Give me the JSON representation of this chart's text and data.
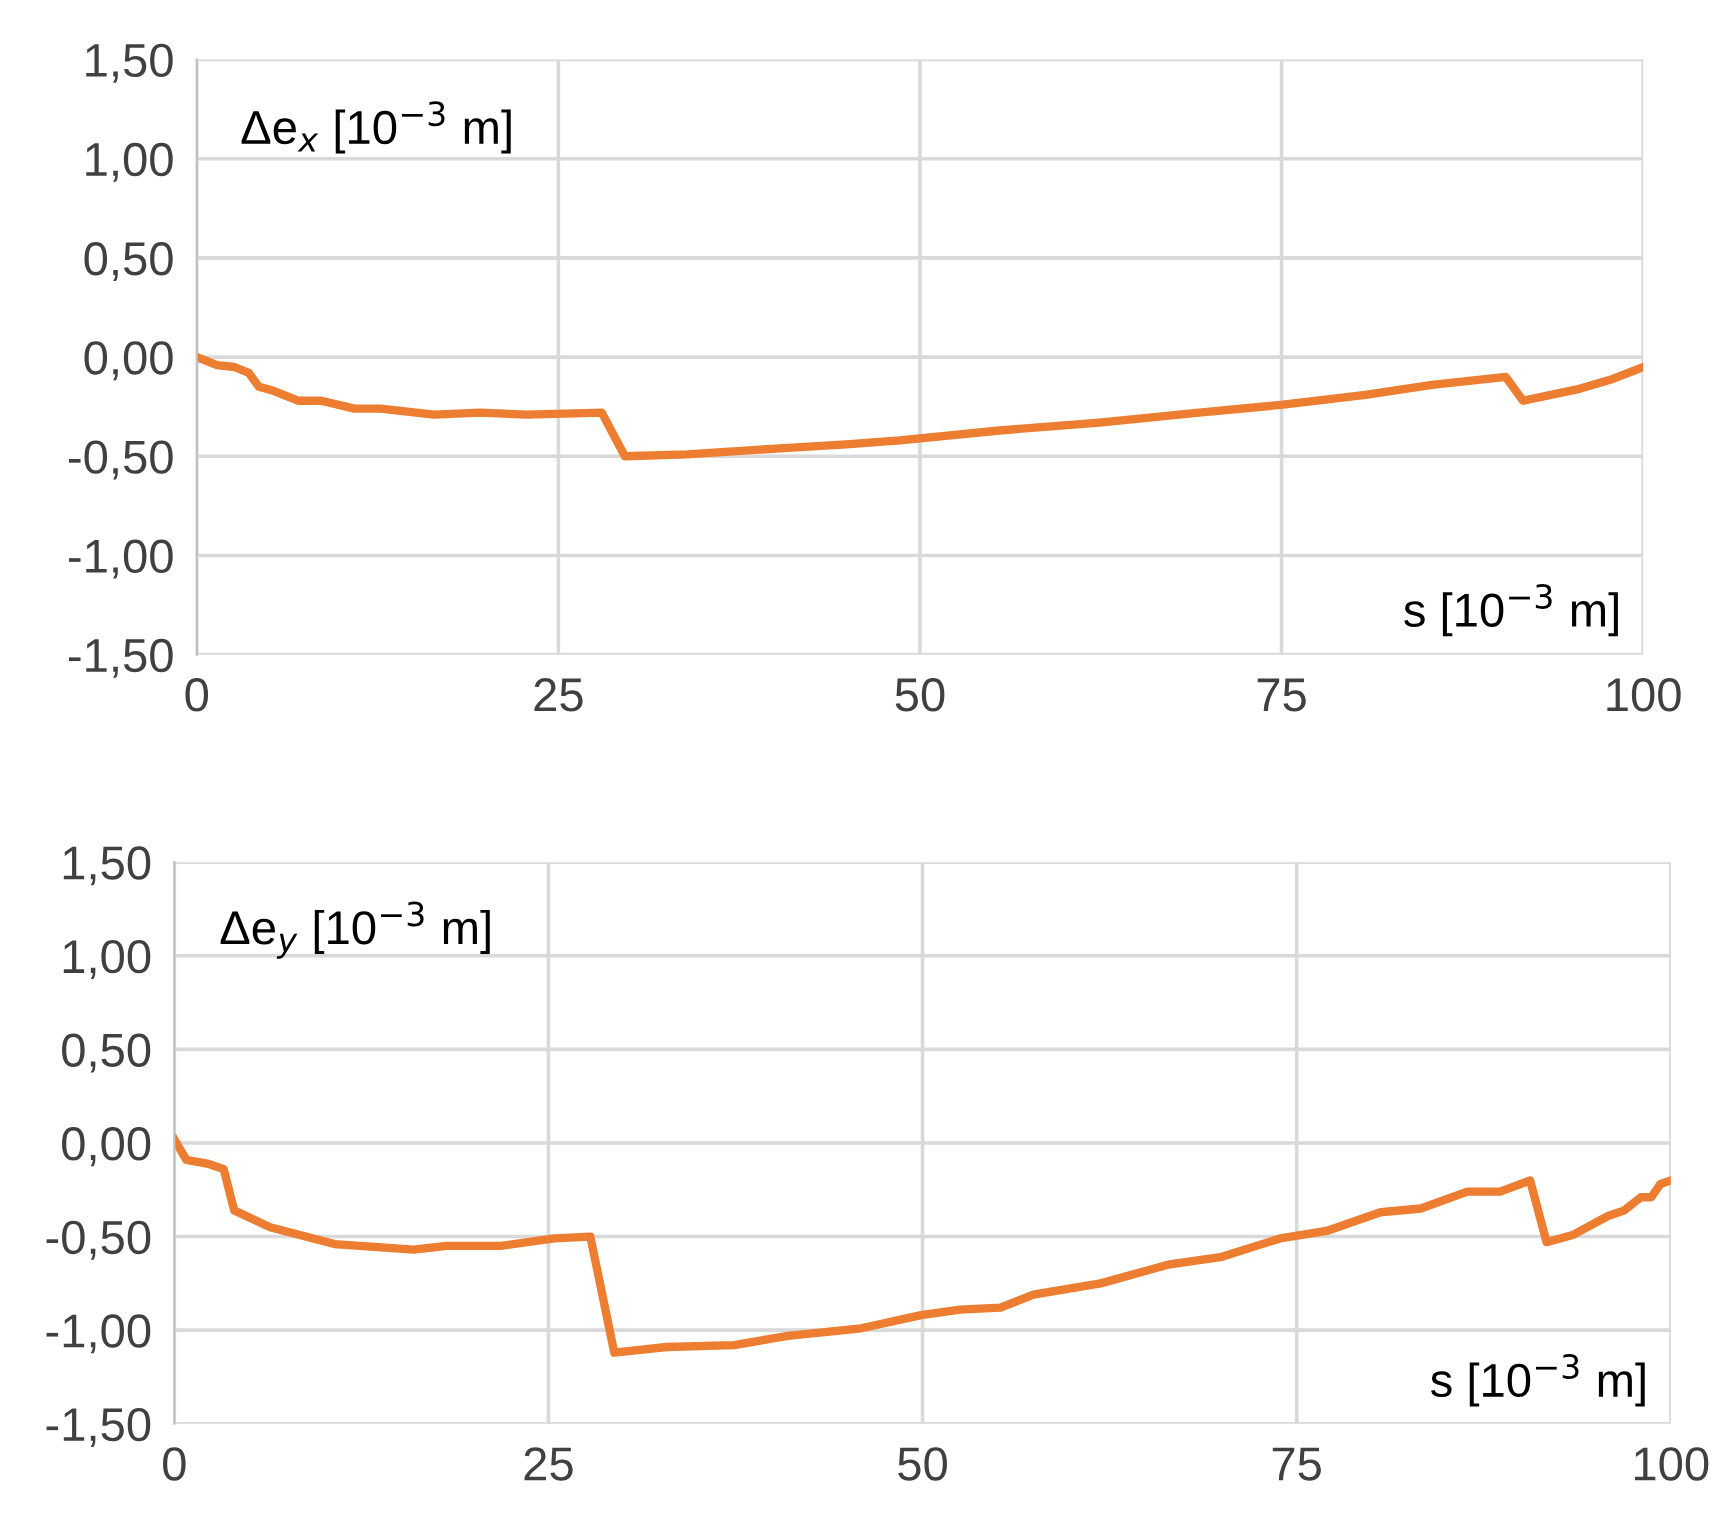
{
  "chart_data": [
    {
      "type": "line",
      "ylabel": "Δe$_{x}$ [10$^{−3}$ m]",
      "xlabel": "s [10$^{−3}$ m]",
      "series": [
        {
          "color": "#ed7d31",
          "x": [
            0,
            1.4,
            2.6,
            3.6,
            4.3,
            5.3,
            7,
            8.6,
            10.9,
            12.7,
            16.4,
            19.6,
            22.8,
            28,
            29.6,
            33.9,
            40.3,
            44.9,
            48.6,
            55.5,
            62.4,
            69.3,
            75.1,
            80.8,
            85.4,
            90.5,
            91.7,
            95.6,
            97.9,
            100
          ],
          "values": [
            0,
            -0.04,
            -0.05,
            -0.08,
            -0.15,
            -0.17,
            -0.22,
            -0.22,
            -0.26,
            -0.26,
            -0.29,
            -0.28,
            -0.29,
            -0.28,
            -0.5,
            -0.49,
            -0.46,
            -0.44,
            -0.42,
            -0.37,
            -0.33,
            -0.28,
            -0.24,
            -0.19,
            -0.14,
            -0.1,
            -0.22,
            -0.16,
            -0.11,
            -0.05
          ]
        }
      ],
      "xlim": [
        0,
        100
      ],
      "xticks": [
        0,
        25,
        50,
        75,
        100
      ],
      "ylim": [
        -1.5,
        1.5
      ],
      "yticks": [
        {
          "value": -1.5,
          "label": "-1,50"
        },
        {
          "value": -1.0,
          "label": "-1,00"
        },
        {
          "value": -0.5,
          "label": "-0,50"
        },
        {
          "value": 0,
          "label": "0,00"
        },
        {
          "value": 0.5,
          "label": "0,50"
        },
        {
          "value": 1.0,
          "label": "1,00"
        },
        {
          "value": 1.5,
          "label": "1,50"
        }
      ],
      "grid": true,
      "line_style": "solid",
      "marker": "none"
    },
    {
      "type": "line",
      "ylabel": "Δe$_{y}$ [10$^{−3}$ m]",
      "xlabel": "s [10$^{−3}$ m]",
      "series": [
        {
          "color": "#ed7d31",
          "x": [
            0,
            0.8,
            2.2,
            3.3,
            4.0,
            6.4,
            10.7,
            16.0,
            18.2,
            21.8,
            25.4,
            27.8,
            29.4,
            32.9,
            37.4,
            41,
            45.9,
            49.9,
            52.5,
            55.2,
            57.4,
            61.9,
            66.4,
            69.9,
            73.9,
            77,
            80.6,
            83.3,
            86.4,
            88.6,
            90.6,
            91.7,
            93.5,
            95.8,
            96.9,
            98.0,
            98.7,
            99.3,
            100
          ],
          "values": [
            0.02,
            -0.09,
            -0.11,
            -0.14,
            -0.36,
            -0.45,
            -0.54,
            -0.57,
            -0.55,
            -0.55,
            -0.51,
            -0.5,
            -1.12,
            -1.09,
            -1.08,
            -1.03,
            -0.99,
            -0.92,
            -0.89,
            -0.88,
            -0.81,
            -0.75,
            -0.65,
            -0.61,
            -0.51,
            -0.47,
            -0.37,
            -0.35,
            -0.26,
            -0.26,
            -0.2,
            -0.53,
            -0.49,
            -0.39,
            -0.36,
            -0.29,
            -0.29,
            -0.22,
            -0.2
          ]
        }
      ],
      "xlim": [
        0,
        100
      ],
      "xticks": [
        0,
        25,
        50,
        75,
        100
      ],
      "ylim": [
        -1.5,
        1.5
      ],
      "yticks": [
        {
          "value": -1.5,
          "label": "-1,50"
        },
        {
          "value": -1.0,
          "label": "-1,00"
        },
        {
          "value": -0.5,
          "label": "-0,50"
        },
        {
          "value": 0,
          "label": "0,00"
        },
        {
          "value": 0.5,
          "label": "0,50"
        },
        {
          "value": 1.0,
          "label": "1,00"
        },
        {
          "value": 1.5,
          "label": "1,50"
        }
      ],
      "grid": true,
      "line_style": "solid",
      "marker": "none"
    }
  ]
}
